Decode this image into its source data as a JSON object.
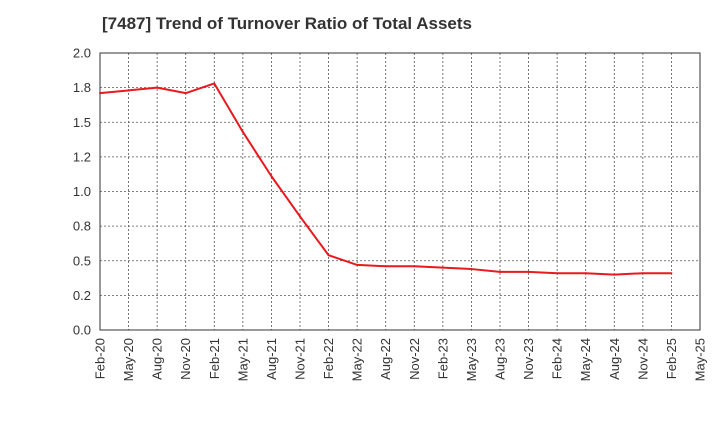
{
  "chart_data": {
    "type": "line",
    "title": "[7487]  Trend of Turnover Ratio of Total Assets",
    "xlabel": "",
    "ylabel": "",
    "ylim": [
      0,
      2.0
    ],
    "yticks": [
      "0.0",
      "0.2",
      "0.5",
      "0.8",
      "1.0",
      "1.2",
      "1.5",
      "1.8",
      "2.0"
    ],
    "xticks": [
      "Feb-20",
      "May-20",
      "Aug-20",
      "Nov-20",
      "Feb-21",
      "May-21",
      "Aug-21",
      "Nov-21",
      "Feb-22",
      "May-22",
      "Aug-22",
      "Nov-22",
      "Feb-23",
      "May-23",
      "Aug-23",
      "Nov-23",
      "Feb-24",
      "May-24",
      "Aug-24",
      "Nov-24",
      "Feb-25",
      "May-25"
    ],
    "grid": true,
    "series": [
      {
        "color": "#e8191f",
        "x": [
          "Feb-20",
          "May-20",
          "Aug-20",
          "Nov-20",
          "Feb-21",
          "May-21",
          "Aug-21",
          "Nov-21",
          "Feb-22",
          "May-22",
          "Aug-22",
          "Nov-22",
          "Feb-23",
          "May-23",
          "Aug-23",
          "Nov-23",
          "Feb-24",
          "May-24",
          "Aug-24",
          "Nov-24",
          "Feb-25"
        ],
        "values": [
          1.71,
          1.73,
          1.75,
          1.71,
          1.78,
          1.43,
          1.11,
          0.82,
          0.54,
          0.47,
          0.46,
          0.46,
          0.45,
          0.44,
          0.42,
          0.42,
          0.41,
          0.41,
          0.4,
          0.41,
          0.41
        ]
      }
    ]
  }
}
